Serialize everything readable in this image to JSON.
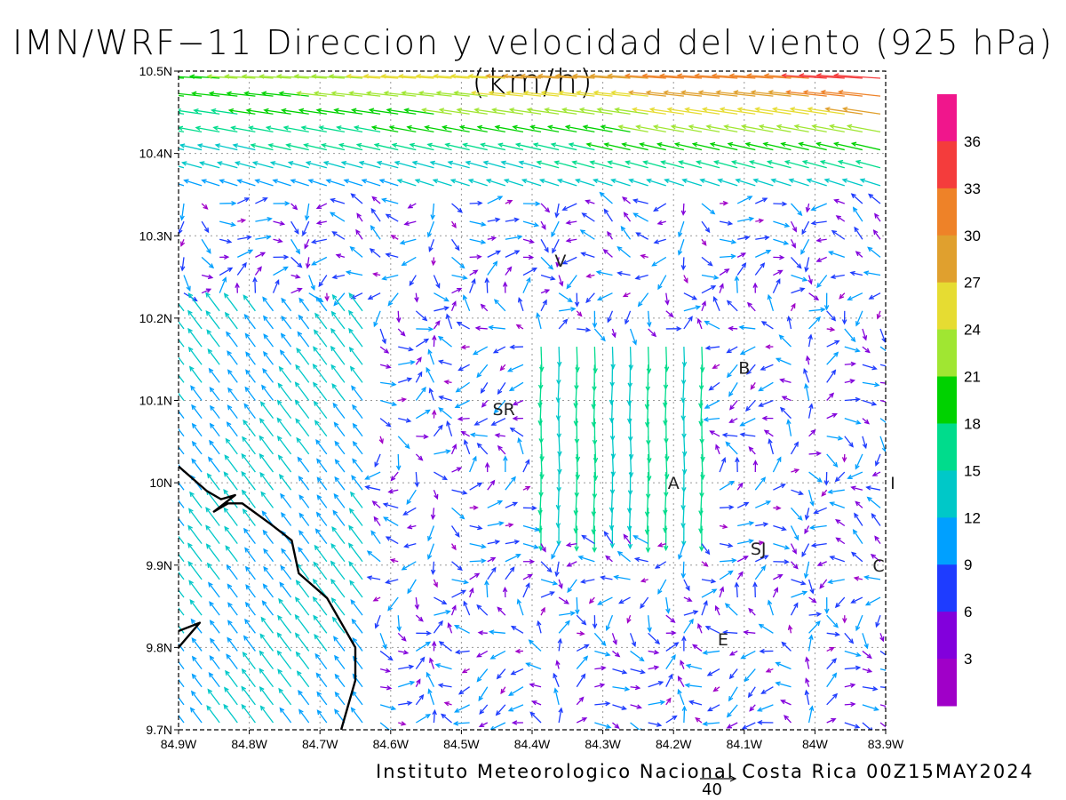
{
  "title": "IMN/WRF−11 Direccion y velocidad del viento (925 hPa)(km/h)",
  "footer": "Instituto Meteorologico Nacional Costa Rica 00Z15MAY2024",
  "reference_vector": {
    "label": "40",
    "speed": 40
  },
  "map": {
    "lon_range": [
      -84.9,
      -83.9
    ],
    "lat_range": [
      9.7,
      10.5
    ],
    "x_ticks": [
      "84.9W",
      "84.8W",
      "84.7W",
      "84.6W",
      "84.5W",
      "84.4W",
      "84.3W",
      "84.2W",
      "84.1W",
      "84W",
      "83.9W"
    ],
    "y_ticks": [
      "9.7N",
      "9.8N",
      "9.9N",
      "10N",
      "10.1N",
      "10.2N",
      "10.3N",
      "10.4N",
      "10.5N"
    ],
    "grid": true,
    "places": [
      {
        "label": "V",
        "lon": -84.36,
        "lat": 10.27
      },
      {
        "label": "SR",
        "lon": -84.44,
        "lat": 10.09
      },
      {
        "label": "B",
        "lon": -84.1,
        "lat": 10.14
      },
      {
        "label": "A",
        "lon": -84.2,
        "lat": 10.0
      },
      {
        "label": "SJ",
        "lon": -84.08,
        "lat": 9.92
      },
      {
        "label": "C",
        "lon": -83.91,
        "lat": 9.9
      },
      {
        "label": "E",
        "lon": -84.13,
        "lat": 9.81
      },
      {
        "label": "I",
        "lon": -83.89,
        "lat": 10.0
      }
    ],
    "coastline": [
      [
        -84.9,
        10.02
      ],
      [
        -84.86,
        9.99
      ],
      [
        -84.84,
        9.98
      ],
      [
        -84.82,
        9.985
      ],
      [
        -84.85,
        9.965
      ],
      [
        -84.83,
        9.975
      ],
      [
        -84.81,
        9.975
      ],
      [
        -84.77,
        9.95
      ],
      [
        -84.74,
        9.93
      ],
      [
        -84.73,
        9.89
      ],
      [
        -84.71,
        9.875
      ],
      [
        -84.69,
        9.86
      ],
      [
        -84.67,
        9.83
      ],
      [
        -84.65,
        9.8
      ],
      [
        -84.65,
        9.76
      ],
      [
        -84.67,
        9.7
      ]
    ],
    "coastline2": [
      [
        -84.9,
        9.82
      ],
      [
        -84.87,
        9.83
      ],
      [
        -84.9,
        9.8
      ]
    ],
    "wind_color_rule": "arrow color follows speed class on the colorbar"
  },
  "colorbar": {
    "labels": [
      "36",
      "33",
      "30",
      "27",
      "24",
      "21",
      "18",
      "15",
      "12",
      "9",
      "6",
      "3"
    ],
    "colors": [
      "#f0168c",
      "#f43c3c",
      "#ee8228",
      "#e0a02e",
      "#e6dc32",
      "#a0e632",
      "#00d200",
      "#00dc8c",
      "#00c8c8",
      "#00a0ff",
      "#1e3cff",
      "#8200dc",
      "#a000c8"
    ]
  }
}
